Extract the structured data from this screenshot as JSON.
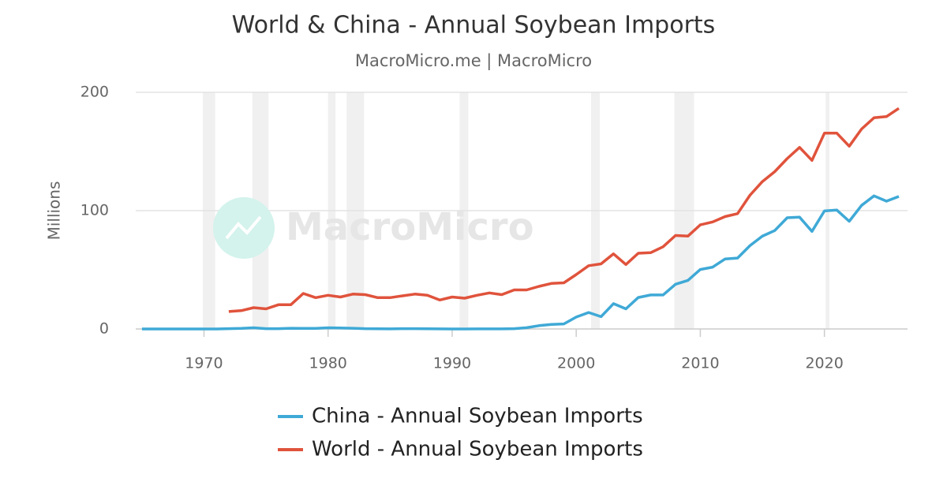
{
  "chart_data": {
    "type": "line",
    "title": "World & China - Annual Soybean Imports",
    "subtitle": "MacroMicro.me | MacroMicro",
    "watermark": "MacroMicro",
    "y_label": "Millions",
    "x": [
      1965,
      1966,
      1967,
      1968,
      1969,
      1970,
      1971,
      1972,
      1973,
      1974,
      1975,
      1976,
      1977,
      1978,
      1979,
      1980,
      1981,
      1982,
      1983,
      1984,
      1985,
      1986,
      1987,
      1988,
      1989,
      1990,
      1991,
      1992,
      1993,
      1994,
      1995,
      1996,
      1997,
      1998,
      1999,
      2000,
      2001,
      2002,
      2003,
      2004,
      2005,
      2006,
      2007,
      2008,
      2009,
      2010,
      2011,
      2012,
      2013,
      2014,
      2015,
      2016,
      2017,
      2018,
      2019,
      2020,
      2021,
      2022,
      2023,
      2024,
      2025,
      2026
    ],
    "series": [
      {
        "name": "China - Annual Soybean Imports",
        "color": "#3fa9d6",
        "values": [
          0,
          0,
          0,
          0,
          0,
          0,
          0,
          0.3,
          0.5,
          1,
          0.3,
          0.3,
          0.6,
          0.5,
          0.5,
          1,
          0.8,
          0.6,
          0.3,
          0.2,
          0.1,
          0.3,
          0.3,
          0.2,
          0.1,
          0,
          0,
          0.1,
          0.1,
          0.1,
          0.3,
          1.1,
          2.8,
          3.8,
          4.3,
          10.1,
          13.9,
          10.4,
          21.4,
          17,
          26.6,
          28.7,
          28.7,
          37.8,
          41.1,
          50.3,
          52.3,
          59.2,
          59.9,
          70.4,
          78.4,
          83.2,
          94,
          94.5,
          82.5,
          99.7,
          100.5,
          91,
          104.5,
          112.5,
          108,
          112
        ]
      },
      {
        "name": "World - Annual Soybean Imports",
        "color": "#e0533c",
        "values": [
          null,
          null,
          null,
          null,
          null,
          null,
          null,
          14.7,
          15.5,
          18,
          17,
          20.5,
          20.5,
          30,
          26.5,
          28.5,
          27,
          29.5,
          29,
          26.5,
          26.5,
          28,
          29.5,
          28.5,
          24.5,
          27,
          26,
          28.5,
          30.5,
          29,
          33,
          33,
          36,
          38.5,
          39,
          46,
          53.5,
          55,
          63.5,
          54.5,
          64,
          64.5,
          69.5,
          79,
          78.5,
          88,
          90.5,
          95,
          97.5,
          113,
          124.5,
          133,
          144,
          153.5,
          142.5,
          165.5,
          165.5,
          154.5,
          169,
          178.5,
          179.5,
          186.5
        ]
      }
    ],
    "shaded_ranges": [
      [
        1969.9,
        1970.9
      ],
      [
        1973.9,
        1975.2
      ],
      [
        1980.0,
        1980.6
      ],
      [
        1981.5,
        1982.9
      ],
      [
        1990.6,
        1991.3
      ],
      [
        2001.2,
        2001.9
      ],
      [
        2007.9,
        2009.5
      ],
      [
        2020.1,
        2020.4
      ]
    ],
    "shade_color": "#f0f0f0",
    "xlim": [
      1964.5,
      2026.7
    ],
    "ylim": [
      0,
      200
    ],
    "xticks": [
      1970,
      1980,
      1990,
      2000,
      2010,
      2020
    ],
    "yticks": [
      0,
      100,
      200
    ],
    "grid": true,
    "legend": "bottom"
  }
}
